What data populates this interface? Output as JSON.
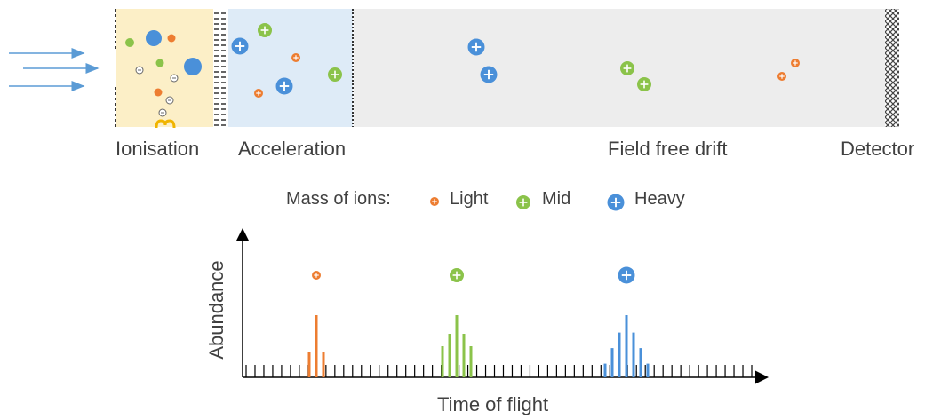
{
  "stages": {
    "ionisation": "Ionisation",
    "acceleration": "Acceleration",
    "drift": "Field free drift",
    "detector": "Detector"
  },
  "legend": {
    "title": "Mass of ions:",
    "light": "Light",
    "mid": "Mid",
    "heavy": "Heavy"
  },
  "colors": {
    "light": "#ED7D31",
    "mid": "#8BC34A",
    "heavy": "#4A90D9",
    "ionisation_bg": "#FCEFC7",
    "acceleration_bg": "#DEEBF7",
    "drift_bg": "#EDEDED",
    "beam": "#5B9BD5"
  },
  "chart_data": {
    "type": "bar",
    "xlabel": "Time of flight",
    "ylabel": "Abundance",
    "tick_count": 58,
    "series": [
      {
        "name": "Light",
        "color_key": "light",
        "values": [
          0.4,
          1.0,
          0.4
        ]
      },
      {
        "name": "Mid",
        "color_key": "mid",
        "values": [
          0.5,
          0.7,
          1.0,
          0.7,
          0.5
        ]
      },
      {
        "name": "Heavy",
        "color_key": "heavy",
        "values": [
          0.22,
          0.47,
          0.72,
          1.0,
          0.72,
          0.47,
          0.22
        ]
      }
    ]
  }
}
